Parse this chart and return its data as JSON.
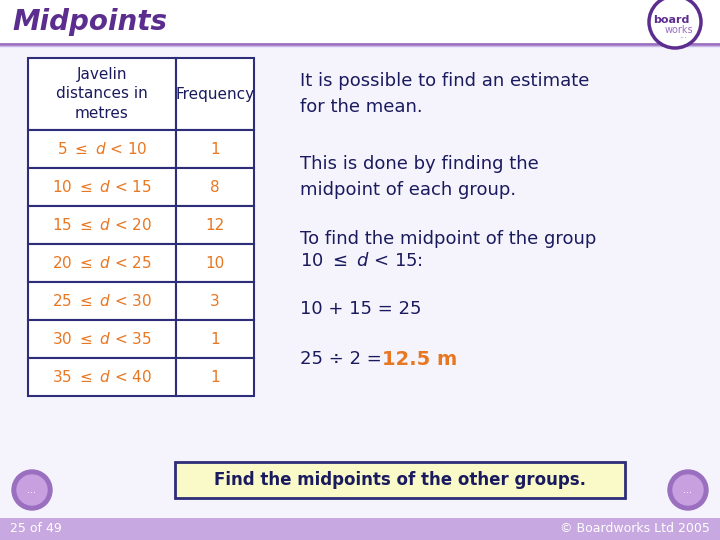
{
  "title": "Midpoints",
  "title_color": "#5b2d8e",
  "bg_color": "#f5f4fc",
  "table_header_col1": "Javelin\ndistances in\nmetres",
  "table_header_col2": "Frequency",
  "table_rows": [
    [
      "5 ≤ d < 10",
      "1"
    ],
    [
      "10 ≤ d < 15",
      "8"
    ],
    [
      "15 ≤ d < 20",
      "12"
    ],
    [
      "20 ≤ d < 25",
      "10"
    ],
    [
      "25 ≤ d < 30",
      "3"
    ],
    [
      "30 ≤ d < 35",
      "1"
    ],
    [
      "35 ≤ d < 40",
      "1"
    ]
  ],
  "table_text_color": "#e87722",
  "table_header_text_color": "#1a1a5e",
  "table_border_color": "#2d2d7a",
  "right_para1": "It is possible to find an estimate\nfor the mean.",
  "right_para2": "This is done by finding the\nmidpoint of each group.",
  "right_para3a": "To find the midpoint of the group",
  "right_para3b": "10 ≤ d < 15:",
  "right_para4": "10 + 15 = 25",
  "right_para5a": "25 ÷ 2 = ",
  "right_para5b": "12.5 m",
  "right_text_color": "#1a1a5e",
  "highlight_color": "#e87722",
  "bottom_box_text": "Find the midpoints of the other groups.",
  "bottom_box_text_color": "#1a1a5e",
  "bottom_box_bg": "#fafac8",
  "bottom_box_border_color": "#2d2d7a",
  "footer_text": "25 of 49",
  "footer_right_text": "© Boardworks Ltd 2005",
  "footer_color": "#5b2d8e",
  "footer_bar_color": "#c8a8e0",
  "logo_border_color": "#5b2d8e",
  "logo_text1": "board",
  "logo_text2": "works",
  "logo_dots": "...",
  "nav_outer_color": "#9b6fc0",
  "nav_inner_color": "#c8a0e0"
}
